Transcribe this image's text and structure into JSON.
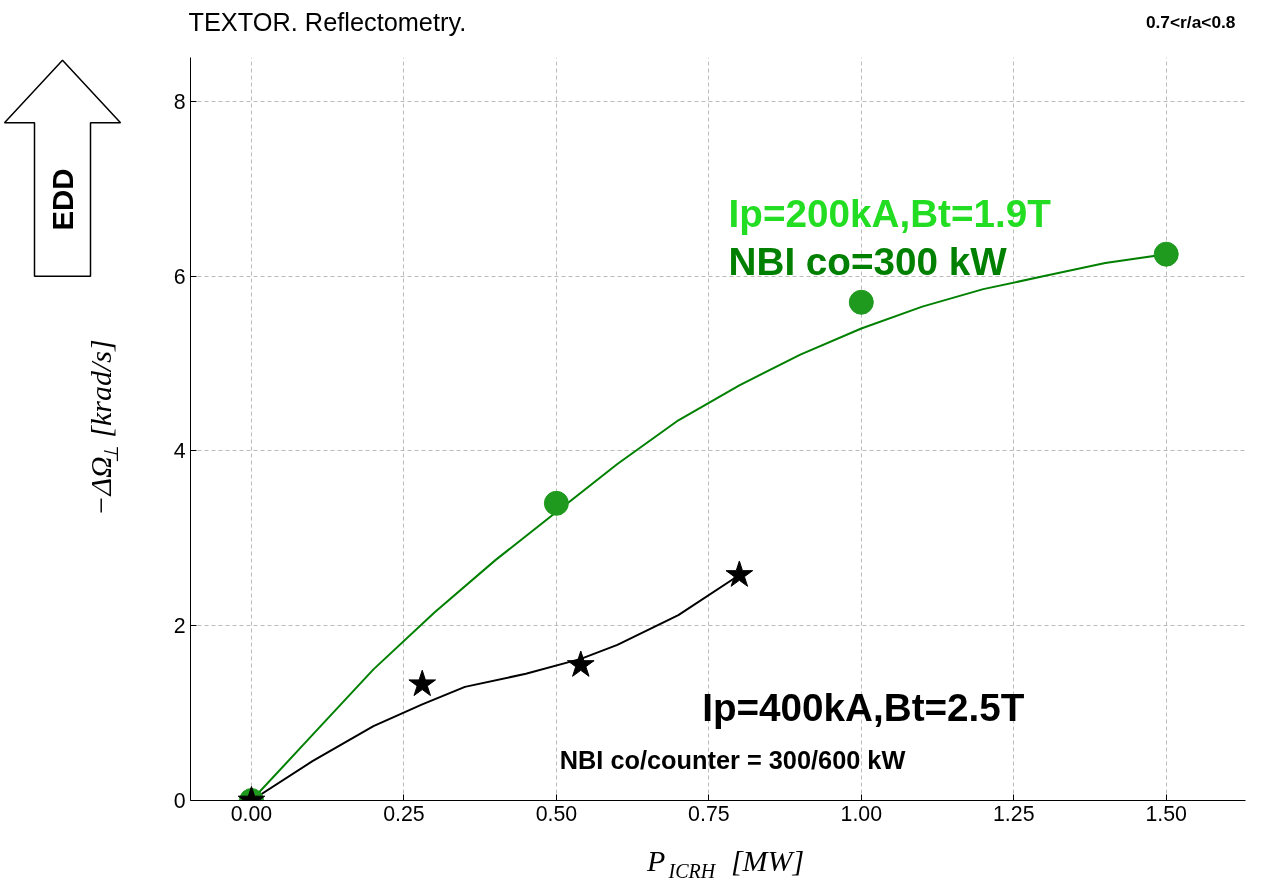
{
  "chart_data": {
    "type": "scatter",
    "title": "TEXTOR.  Reflectometry.",
    "xlabel": "P$_{ICRH}$ [MW]",
    "ylabel": "−ΔΩ$_{⊥}$ [krad/s]",
    "xlim": [
      -0.1,
      1.63
    ],
    "ylim": [
      0,
      8.5
    ],
    "xticks": [
      {
        "value": 0,
        "label": "0.00"
      },
      {
        "value": 0.25,
        "label": "0.25"
      },
      {
        "value": 0.5,
        "label": "0.50"
      },
      {
        "value": 0.75,
        "label": "0.75"
      },
      {
        "value": 1,
        "label": "1.00"
      },
      {
        "value": 1.25,
        "label": "1.25"
      },
      {
        "value": 1.5,
        "label": "1.50"
      }
    ],
    "yticks": [
      0,
      2,
      4,
      6,
      8
    ],
    "grid": true,
    "series": [
      {
        "type": "line",
        "color": "#008000",
        "x": [
          0,
          0.1,
          0.2,
          0.3,
          0.4,
          0.5,
          0.6,
          0.7,
          0.8,
          0.9,
          1.0,
          1.1,
          1.2,
          1.3,
          1.4,
          1.5
        ],
        "values": [
          0,
          0.75,
          1.5,
          2.15,
          2.75,
          3.3,
          3.85,
          4.35,
          4.75,
          5.1,
          5.4,
          5.65,
          5.85,
          6.0,
          6.15,
          6.25
        ]
      },
      {
        "type": "line",
        "color": "#000000",
        "x": [
          0,
          0.1,
          0.2,
          0.28,
          0.35,
          0.45,
          0.54,
          0.6,
          0.7,
          0.8
        ],
        "values": [
          0,
          0.45,
          0.85,
          1.1,
          1.3,
          1.45,
          1.62,
          1.78,
          2.12,
          2.58
        ]
      },
      {
        "type": "scatter",
        "marker": "circle",
        "color": "#1f9a1f",
        "x": [
          0,
          0.5,
          1.0,
          1.5
        ],
        "values": [
          0,
          3.4,
          5.7,
          6.25
        ]
      },
      {
        "type": "scatter",
        "marker": "star",
        "color": "#000000",
        "x": [
          0,
          0.28,
          0.54,
          0.8
        ],
        "values": [
          0,
          1.33,
          1.55,
          2.58
        ]
      }
    ],
    "annotations": [
      "0.7<r/a<0.8",
      "Ip=200kA,Bt=1.9T",
      "NBI co=300 kW",
      "Ip=400kA,Bt=2.5T",
      "NBI co/counter = 300/600 kW",
      "EDD"
    ]
  }
}
